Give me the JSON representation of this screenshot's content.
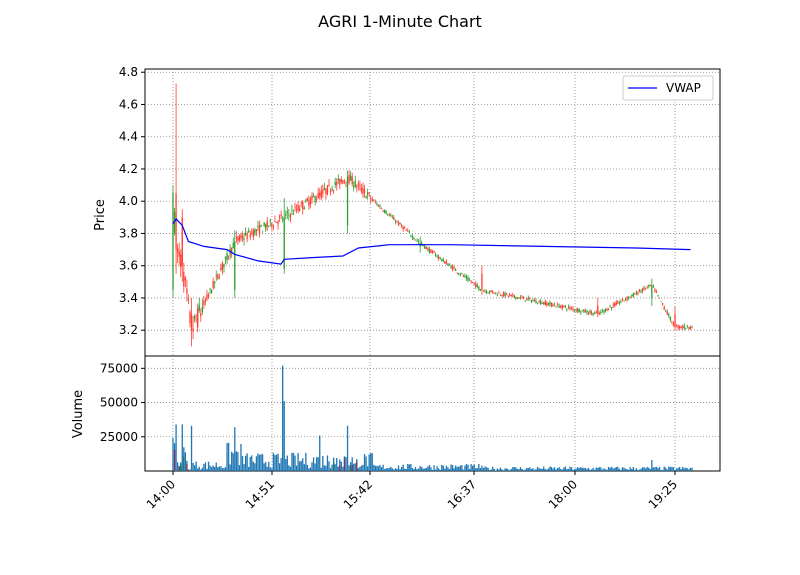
{
  "chart_data": [
    {
      "type": "candlestick",
      "title": "AGRI 1-Minute Chart",
      "ylabel": "Price",
      "ylim": [
        3.04,
        4.82
      ],
      "yticks": [
        3.2,
        3.4,
        3.6,
        3.8,
        4.0,
        4.2,
        4.4,
        4.6,
        4.8
      ],
      "ytick_labels": [
        "3.2",
        "3.4",
        "3.6",
        "3.8",
        "4.0",
        "4.2",
        "4.4",
        "4.6",
        "4.8"
      ],
      "grid": true,
      "legend": {
        "placement": "top-right",
        "entries": [
          "VWAP"
        ]
      },
      "colors": {
        "up": "#2ca02c",
        "down": "#ff3b30",
        "vwap": "#0000ff"
      },
      "candles_ohlc_sample": [
        {
          "x": 0,
          "o": 3.45,
          "h": 4.1,
          "l": 3.4,
          "c": 4.05
        },
        {
          "x": 2,
          "o": 4.05,
          "h": 4.73,
          "l": 3.55,
          "c": 3.7
        },
        {
          "x": 6,
          "o": 3.9,
          "h": 3.95,
          "l": 3.5,
          "c": 3.6
        },
        {
          "x": 12,
          "o": 3.3,
          "h": 3.4,
          "l": 3.1,
          "c": 3.2
        },
        {
          "x": 40,
          "o": 3.45,
          "h": 3.82,
          "l": 3.4,
          "c": 3.75
        },
        {
          "x": 72,
          "o": 3.58,
          "h": 4.02,
          "l": 3.55,
          "c": 3.9
        },
        {
          "x": 113,
          "o": 3.85,
          "h": 4.19,
          "l": 3.8,
          "c": 4.15
        },
        {
          "x": 160,
          "o": 3.72,
          "h": 3.78,
          "l": 3.68,
          "c": 3.74
        },
        {
          "x": 200,
          "o": 3.55,
          "h": 3.6,
          "l": 3.42,
          "c": 3.45
        },
        {
          "x": 275,
          "o": 3.35,
          "h": 3.4,
          "l": 3.28,
          "c": 3.3
        },
        {
          "x": 310,
          "o": 3.4,
          "h": 3.52,
          "l": 3.35,
          "c": 3.48
        },
        {
          "x": 325,
          "o": 3.3,
          "h": 3.35,
          "l": 3.2,
          "c": 3.22
        }
      ],
      "vwap_points": [
        {
          "x": 0,
          "y": 3.86
        },
        {
          "x": 2,
          "y": 3.89
        },
        {
          "x": 6,
          "y": 3.85
        },
        {
          "x": 10,
          "y": 3.75
        },
        {
          "x": 20,
          "y": 3.72
        },
        {
          "x": 35,
          "y": 3.7
        },
        {
          "x": 40,
          "y": 3.67
        },
        {
          "x": 55,
          "y": 3.63
        },
        {
          "x": 70,
          "y": 3.61
        },
        {
          "x": 72,
          "y": 3.64
        },
        {
          "x": 90,
          "y": 3.65
        },
        {
          "x": 110,
          "y": 3.66
        },
        {
          "x": 120,
          "y": 3.71
        },
        {
          "x": 140,
          "y": 3.73
        },
        {
          "x": 180,
          "y": 3.73
        },
        {
          "x": 240,
          "y": 3.72
        },
        {
          "x": 300,
          "y": 3.71
        },
        {
          "x": 335,
          "y": 3.7
        }
      ]
    },
    {
      "type": "bar",
      "ylabel": "Volume",
      "ylim": [
        0,
        84000
      ],
      "yticks": [
        25000,
        50000,
        75000
      ],
      "ytick_labels": [
        "25000",
        "50000",
        "75000"
      ],
      "grid": true,
      "xtick_labels": [
        "14:00",
        "14:51",
        "15:42",
        "16:37",
        "18:00",
        "19:25"
      ],
      "colors": {
        "bar": "#1f77b4",
        "overlay": "#7f2f5f",
        "overlay_green": "#117a65"
      },
      "volume_sample": [
        {
          "x": 0,
          "v": 24000
        },
        {
          "x": 2,
          "v": 34000
        },
        {
          "x": 6,
          "v": 34000
        },
        {
          "x": 12,
          "v": 33000
        },
        {
          "x": 40,
          "v": 32000
        },
        {
          "x": 71,
          "v": 77000
        },
        {
          "x": 72,
          "v": 51000
        },
        {
          "x": 95,
          "v": 26000
        },
        {
          "x": 113,
          "v": 33000
        },
        {
          "x": 200,
          "v": 4000
        },
        {
          "x": 310,
          "v": 8000
        }
      ]
    }
  ]
}
